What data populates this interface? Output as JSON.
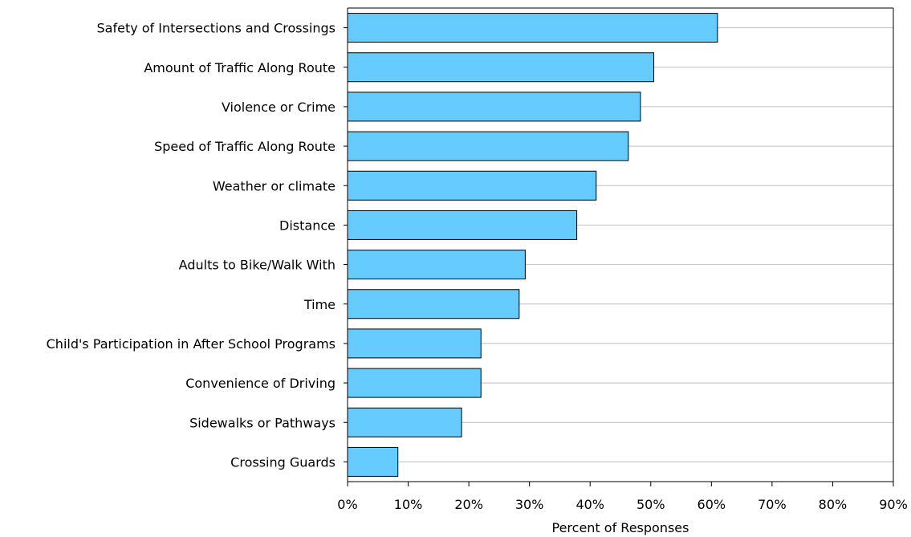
{
  "chart_data": {
    "type": "bar",
    "orientation": "horizontal",
    "categories": [
      "Safety of Intersections and Crossings",
      "Amount of Traffic Along Route",
      "Violence or Crime",
      "Speed of Traffic Along Route",
      "Weather or climate",
      "Distance",
      "Adults to Bike/Walk With",
      "Time",
      "Child's Participation in After School Programs",
      "Convenience of Driving",
      "Sidewalks or Pathways",
      "Crossing Guards"
    ],
    "values": [
      61,
      50.5,
      48.3,
      46.3,
      41,
      37.8,
      29.3,
      28.3,
      22,
      22,
      18.8,
      8.3
    ],
    "xlabel": "Percent of Responses",
    "ylabel": "",
    "xlim": [
      0,
      90
    ],
    "ticks": [
      "0%",
      "10%",
      "20%",
      "30%",
      "40%",
      "50%",
      "60%",
      "70%",
      "80%",
      "90%"
    ],
    "grid": "horizontal lines at each category",
    "bar_color": "#66CCFF",
    "bar_edge_color": "#000000",
    "grid_color": "#C0C0C0"
  }
}
